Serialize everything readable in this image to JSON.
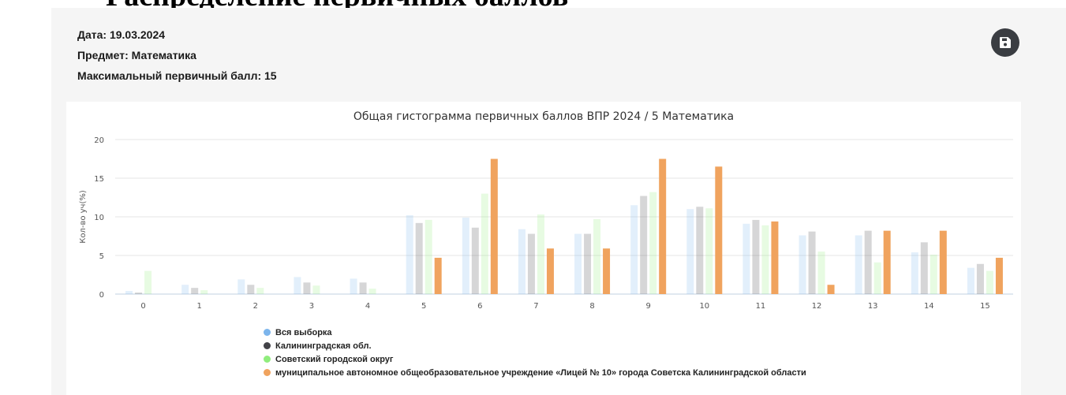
{
  "page": {
    "heading": "Распределение первичных баллов"
  },
  "meta": {
    "date": "Дата: 19.03.2024",
    "subject": "Предмет: Математика",
    "max_score": "Максимальный первичный балл: 15"
  },
  "toolbar": {
    "save_icon": "floppy-disk-icon",
    "button_color": "#3a3d42"
  },
  "chart_data": {
    "type": "bar",
    "title": "Общая гистограмма первичных баллов ВПР 2024 / 5 Математика",
    "xlabel": "",
    "ylabel": "Кол-во уч(%)",
    "ylim": [
      0,
      20
    ],
    "yticks": [
      0,
      5,
      10,
      15,
      20
    ],
    "grid": true,
    "legend_position": "bottom-left",
    "categories": [
      "0",
      "1",
      "2",
      "3",
      "4",
      "5",
      "6",
      "7",
      "8",
      "9",
      "10",
      "11",
      "12",
      "13",
      "14",
      "15"
    ],
    "series": [
      {
        "name": "Вся выборка",
        "color": "#7cb5ec",
        "values": [
          0.4,
          1.2,
          1.9,
          2.2,
          2.0,
          10.2,
          9.9,
          8.4,
          7.8,
          11.5,
          11.0,
          9.1,
          7.6,
          7.6,
          5.4,
          3.4
        ]
      },
      {
        "name": "Калининградская обл.",
        "color": "#434348",
        "values": [
          0.2,
          0.8,
          1.2,
          1.5,
          1.5,
          9.2,
          8.6,
          7.8,
          7.8,
          12.7,
          11.3,
          9.6,
          8.1,
          8.2,
          6.7,
          3.9
        ]
      },
      {
        "name": "Советский городской округ",
        "color": "#90ed7d",
        "values": [
          3.0,
          0.5,
          0.8,
          1.1,
          0.7,
          9.6,
          13.0,
          10.3,
          9.7,
          13.2,
          11.1,
          8.9,
          5.5,
          4.1,
          5.1,
          3.0
        ]
      },
      {
        "name": "муниципальное автономное общеобразовательное учреждение «Лицей № 10» города Советска Калининградской области",
        "color": "#f0a35e",
        "values": [
          0,
          0,
          0,
          0,
          0,
          4.7,
          17.5,
          5.9,
          5.9,
          17.5,
          16.5,
          9.4,
          1.2,
          8.2,
          8.2,
          4.7
        ]
      }
    ]
  }
}
